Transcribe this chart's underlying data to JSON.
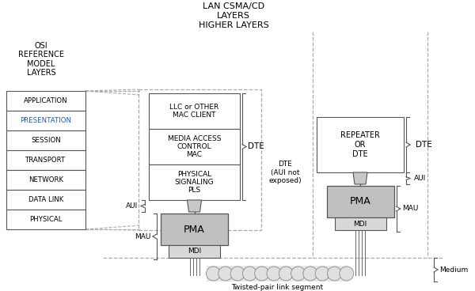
{
  "bg_color": "#ffffff",
  "text_color": "#000000",
  "blue_color": "#1a5fb4",
  "gray_box_color": "#c0c0c0",
  "white_box_color": "#ffffff",
  "box_edge_color": "#555555",
  "title1": "LAN CSMA/CD\nLAYERS",
  "title2": "HIGHER LAYERS",
  "osi_label": "OSI\nREFERENCE\nMODEL\nLAYERS",
  "osi_layers": [
    "APPLICATION",
    "PRESENTATION",
    "SESSION",
    "TRANSPORT",
    "NETWORK",
    "DATA LINK",
    "PHYSICAL"
  ],
  "llc_text": "LLC or OTHER\nMAC CLIENT",
  "mac_text": "MEDIA ACCESS\nCONTROL\nMAC",
  "pls_text": "PHYSICAL\nSIGNALING\nPLS",
  "repeater_text": "REPEATER\nOR\nDTE",
  "pma_text": "PMA",
  "mdi_text": "MDI",
  "dte_label1": "DTE",
  "dte_label2": "DTE\n(AUI not\nexposed)",
  "dte_label3": "DTE",
  "aui_label1": "AUI",
  "aui_label2": "AUI",
  "mau_label1": "MAU",
  "mau_label2": "MAU",
  "medium_label": "Medium",
  "twisted_pair_label": "Twisted-pair link segment"
}
